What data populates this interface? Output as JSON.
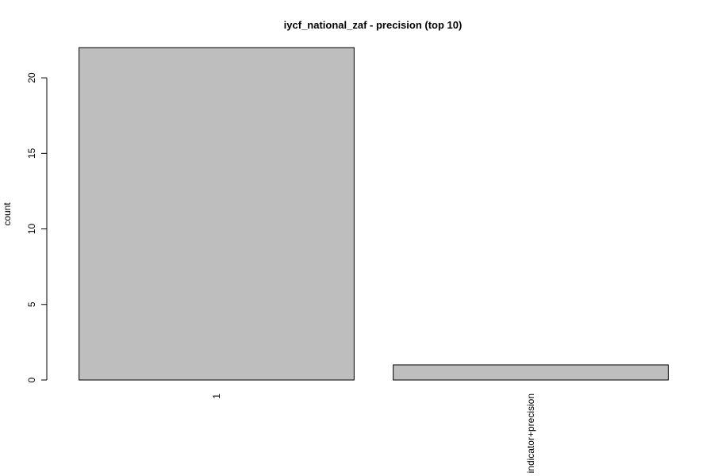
{
  "chart_data": {
    "type": "bar",
    "title": "iycf_national_zaf - precision (top 10)",
    "xlabel": "",
    "ylabel": "count",
    "categories": [
      "1",
      "indicator+precision"
    ],
    "values": [
      22,
      1
    ],
    "ylim": [
      0,
      22
    ],
    "yticks": [
      0,
      5,
      10,
      15,
      20
    ],
    "bar_color": "#bebebe",
    "grid": false,
    "legend": "none"
  }
}
